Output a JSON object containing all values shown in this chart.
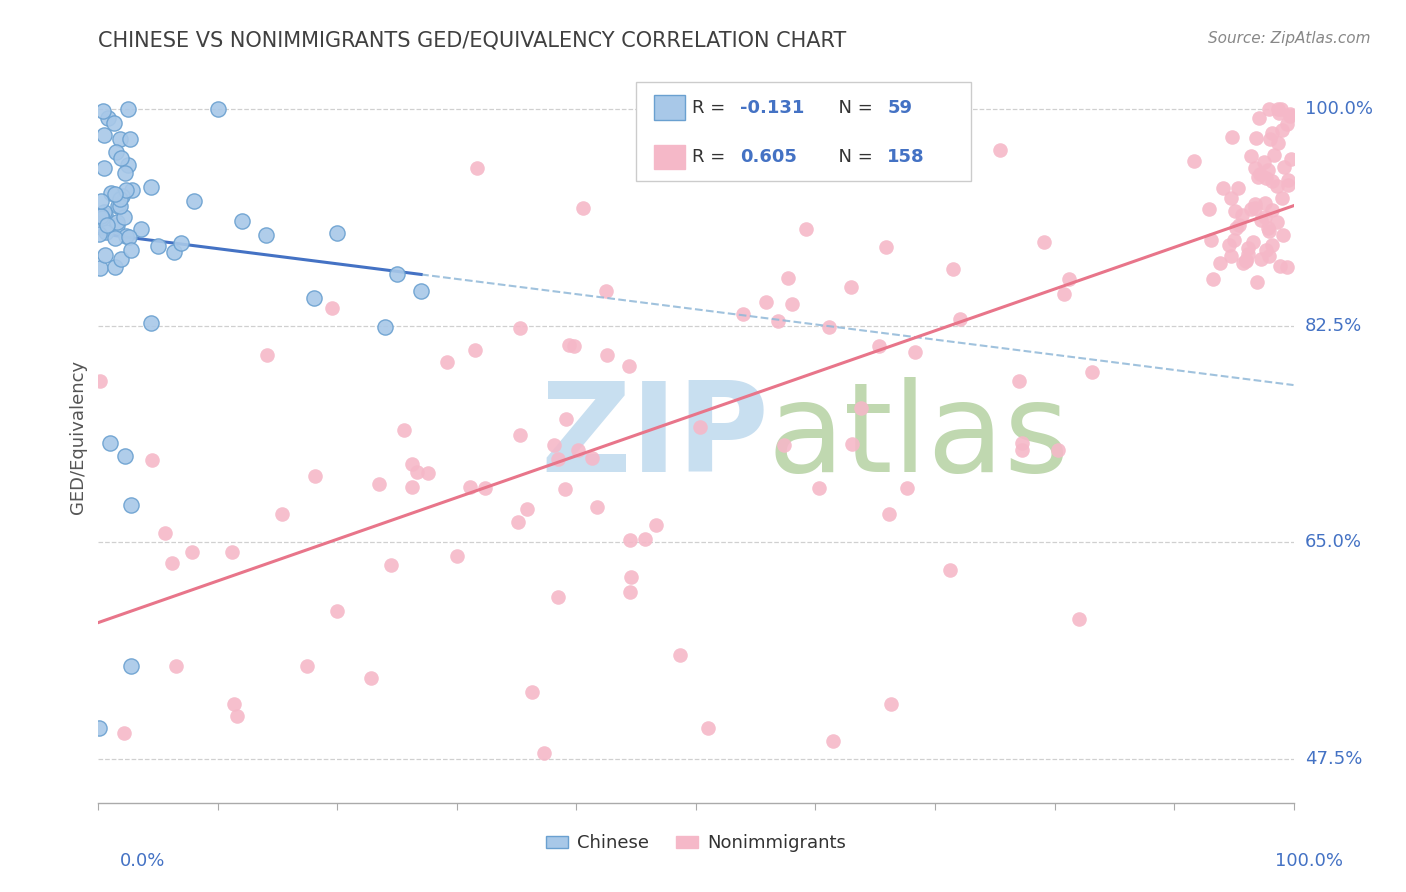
{
  "title": "CHINESE VS NONIMMIGRANTS GED/EQUIVALENCY CORRELATION CHART",
  "source": "Source: ZipAtlas.com",
  "ylabel": "GED/Equivalency",
  "xlim": [
    0.0,
    1.0
  ],
  "ylim": [
    0.44,
    1.03
  ],
  "yticks_right": [
    0.475,
    0.65,
    0.825,
    1.0
  ],
  "ytick_labels_right": [
    "47.5%",
    "65.0%",
    "82.5%",
    "100.0%"
  ],
  "xtick_left_label": "0.0%",
  "xtick_right_label": "100.0%",
  "legend_line1": "R = -0.131   N =  59",
  "legend_line2": "R = 0.605   N = 158",
  "color_chinese_fill": "#a8c8e8",
  "color_chinese_edge": "#6aa0d0",
  "color_nonimm_fill": "#f5b8c8",
  "color_nonimm_edge": "#e890a8",
  "color_trend_chinese_solid": "#4472c4",
  "color_trend_chinese_dash": "#90b8d8",
  "color_trend_nonimm": "#e8758a",
  "color_title": "#404040",
  "color_axis_blue": "#4472c4",
  "color_source": "#888888",
  "color_grid": "#d0d0d0",
  "watermark_zip_color": "#c8dff0",
  "watermark_atlas_color": "#c0d8b0",
  "bottom_legend_chinese": "Chinese",
  "bottom_legend_nonimm": "Nonimmigrants",
  "chinese_seed": 12,
  "nonimm_seed": 7
}
